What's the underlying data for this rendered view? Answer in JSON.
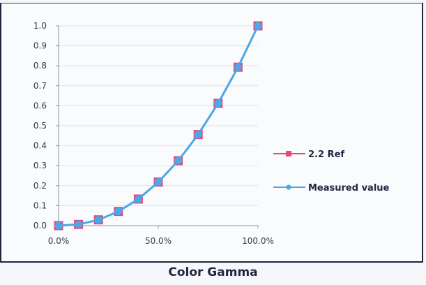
{
  "caption": "Color Gamma",
  "chart_data": {
    "type": "line",
    "title": "Color Gamma",
    "xlabel": "",
    "ylabel": "",
    "x": [
      0,
      10,
      20,
      30,
      40,
      50,
      60,
      70,
      80,
      90,
      100
    ],
    "x_unit": "%",
    "x_tick_labels": [
      "0.0%",
      "50.0%",
      "100.0%"
    ],
    "y_tick_labels": [
      "0.0",
      "0.1",
      "0.2",
      "0.3",
      "0.4",
      "0.5",
      "0.6",
      "0.7",
      "0.8",
      "0.9",
      "1.0"
    ],
    "xlim": [
      0,
      100
    ],
    "ylim": [
      0,
      1.0
    ],
    "grid": true,
    "legend_position": "right",
    "series": [
      {
        "name": "2.2 Ref",
        "color": "#e8477a",
        "marker": "square",
        "values": [
          0.0,
          0.006,
          0.029,
          0.071,
          0.133,
          0.218,
          0.325,
          0.456,
          0.612,
          0.793,
          1.0
        ]
      },
      {
        "name": "Measured value",
        "color": "#4aa8e6",
        "marker": "circle",
        "values": [
          0.0,
          0.006,
          0.029,
          0.071,
          0.133,
          0.218,
          0.325,
          0.456,
          0.612,
          0.793,
          1.0
        ]
      }
    ]
  }
}
